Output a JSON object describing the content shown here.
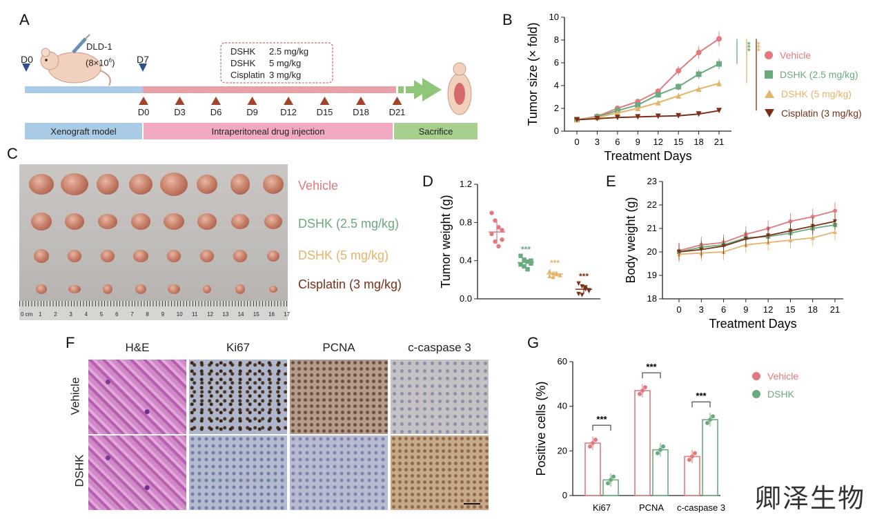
{
  "panels": {
    "A": "A",
    "B": "B",
    "C": "C",
    "D": "D",
    "E": "E",
    "F": "F",
    "G": "G"
  },
  "timeline": {
    "start_marker": "D0",
    "cell_line": "DLD-1",
    "cell_count_base": "(8×10",
    "cell_count_exp": "6",
    "cell_count_close": ")",
    "d7_marker": "D7",
    "doses": [
      {
        "drug": "DSHK",
        "dose": "2.5 mg/kg"
      },
      {
        "drug": "DSHK",
        "dose": "5 mg/kg"
      },
      {
        "drug": "Cisplatin",
        "dose": "3 mg/kg"
      }
    ],
    "injection_days": [
      "D0",
      "D3",
      "D6",
      "D9",
      "D12",
      "D15",
      "D18",
      "D21"
    ],
    "phases": [
      "Xenograft model",
      "Intraperitoneal drug injection",
      "Sacrifice"
    ]
  },
  "colors": {
    "vehicle": "#e07a7f",
    "dshk25": "#6aaa7e",
    "dshk5": "#e6b36a",
    "cisplatin": "#7a3018",
    "timeline_blue": "#a9cbe6",
    "timeline_pink": "#e9a0a6",
    "timeline_green": "#8fc77a",
    "arrow_marker": "#a0452a"
  },
  "group_legend": [
    "Vehicle",
    "DSHK (2.5 mg/kg)",
    "DSHK (5 mg/kg)",
    "Cisplatin (3 mg/kg)"
  ],
  "photo_legend": [
    "Vehicle",
    "DSHK (2.5 mg/kg)",
    "DSHK (5 mg/kg)",
    "Cisplatin (3 mg/kg)"
  ],
  "ruler": {
    "unit": "0 cm",
    "ticks": [
      "1",
      "2",
      "3",
      "4",
      "5",
      "6",
      "7",
      "8",
      "9",
      "10",
      "11",
      "12",
      "13",
      "14",
      "15",
      "16",
      "17"
    ]
  },
  "histology": {
    "columns": [
      "H&E",
      "Ki67",
      "PCNA",
      "c-caspase 3"
    ],
    "rows": [
      "Vehicle",
      "DSHK"
    ]
  },
  "watermark": "卿泽生物",
  "chart_data": [
    {
      "id": "B",
      "type": "line",
      "xlabel": "Treatment Days",
      "ylabel": "Tumor size (× fold)",
      "x": [
        0,
        3,
        6,
        9,
        12,
        15,
        18,
        21
      ],
      "xlim": [
        0,
        21
      ],
      "ylim": [
        0,
        10
      ],
      "yticks": [
        0,
        2,
        4,
        6,
        8,
        10
      ],
      "series": [
        {
          "name": "Vehicle",
          "values": [
            1.0,
            1.3,
            2.0,
            2.6,
            3.5,
            5.3,
            6.9,
            8.1
          ]
        },
        {
          "name": "DSHK (2.5 mg/kg)",
          "values": [
            1.0,
            1.25,
            1.8,
            2.3,
            3.2,
            3.9,
            5.0,
            5.9
          ]
        },
        {
          "name": "DSHK (5 mg/kg)",
          "values": [
            1.0,
            1.2,
            1.6,
            2.0,
            2.5,
            3.1,
            3.7,
            4.2
          ]
        },
        {
          "name": "Cisplatin (3 mg/kg)",
          "values": [
            1.0,
            1.1,
            1.2,
            1.25,
            1.3,
            1.35,
            1.5,
            1.8
          ]
        }
      ],
      "significance": [
        "***",
        "***",
        "***"
      ]
    },
    {
      "id": "D",
      "type": "scatter",
      "ylabel": "Tumor weight (g)",
      "ylim": [
        0,
        1.2
      ],
      "yticks": [
        "0.0",
        "0.4",
        "0.8",
        "1.2"
      ],
      "groups": [
        {
          "name": "Vehicle",
          "mean": 0.7,
          "sd": 0.12,
          "values": [
            0.9,
            0.82,
            0.75,
            0.72,
            0.68,
            0.6,
            0.55,
            0.62
          ]
        },
        {
          "name": "DSHK (2.5 mg/kg)",
          "mean": 0.38,
          "sd": 0.05,
          "values": [
            0.45,
            0.41,
            0.39,
            0.37,
            0.36,
            0.34,
            0.31,
            0.4
          ],
          "sig": "***"
        },
        {
          "name": "DSHK (5 mg/kg)",
          "mean": 0.26,
          "sd": 0.03,
          "values": [
            0.29,
            0.27,
            0.26,
            0.25,
            0.24,
            0.23,
            0.27,
            0.25
          ],
          "sig": "***"
        },
        {
          "name": "Cisplatin (3 mg/kg)",
          "mean": 0.1,
          "sd": 0.05,
          "values": [
            0.16,
            0.13,
            0.1,
            0.08,
            0.05,
            0.04,
            0.12,
            0.09
          ],
          "sig": "***"
        }
      ]
    },
    {
      "id": "E",
      "type": "line",
      "xlabel": "Treatment Days",
      "ylabel": "Body weight (g)",
      "x": [
        0,
        3,
        6,
        9,
        12,
        15,
        18,
        21
      ],
      "ylim": [
        18,
        23
      ],
      "yticks": [
        18,
        19,
        20,
        21,
        22,
        23
      ],
      "series": [
        {
          "name": "Vehicle",
          "values": [
            20.05,
            20.3,
            20.4,
            20.75,
            21.0,
            21.3,
            21.5,
            21.75
          ]
        },
        {
          "name": "DSHK (2.5 mg/kg)",
          "values": [
            20.0,
            20.2,
            20.3,
            20.6,
            20.65,
            20.8,
            21.0,
            21.15
          ]
        },
        {
          "name": "DSHK (5 mg/kg)",
          "values": [
            19.9,
            19.95,
            20.0,
            20.3,
            20.4,
            20.5,
            20.6,
            20.85
          ]
        },
        {
          "name": "Cisplatin (3 mg/kg)",
          "values": [
            20.0,
            20.1,
            20.25,
            20.55,
            20.7,
            20.9,
            21.1,
            21.3
          ]
        }
      ]
    },
    {
      "id": "G",
      "type": "bar",
      "ylabel": "Positive cells (%)",
      "categories": [
        "Ki67",
        "PCNA",
        "c-caspase 3"
      ],
      "ylim": [
        0,
        60
      ],
      "yticks": [
        0,
        20,
        40,
        60
      ],
      "series": [
        {
          "name": "Vehicle",
          "values": [
            23.5,
            47.0,
            17.5
          ]
        },
        {
          "name": "DSHK",
          "values": [
            7.0,
            20.5,
            34.0
          ]
        }
      ],
      "significance": [
        "***",
        "***",
        "***"
      ]
    }
  ]
}
